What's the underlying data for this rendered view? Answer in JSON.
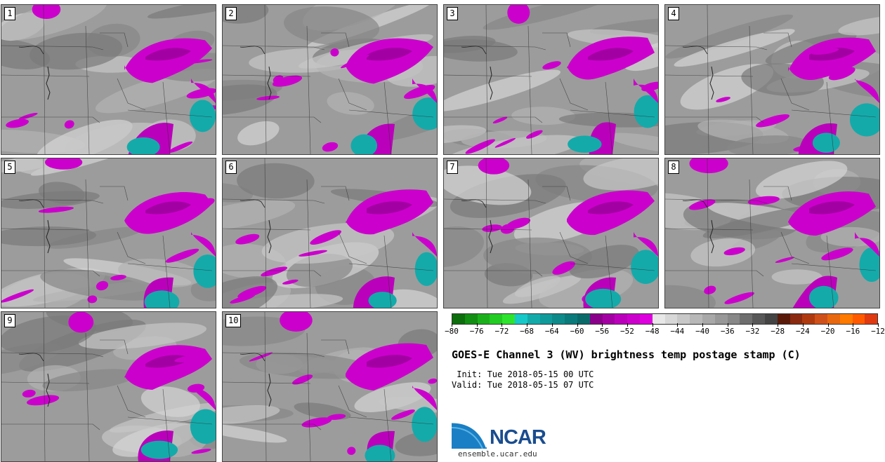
{
  "panels": [
    {
      "label": "1"
    },
    {
      "label": "2"
    },
    {
      "label": "3"
    },
    {
      "label": "4"
    },
    {
      "label": "5"
    },
    {
      "label": "6"
    },
    {
      "label": "7"
    },
    {
      "label": "8"
    },
    {
      "label": "9"
    },
    {
      "label": "10"
    }
  ],
  "colorbar": {
    "colors": [
      "#0d6e0d",
      "#138f13",
      "#1bb01b",
      "#22cc22",
      "#2ee32e",
      "#17c8c8",
      "#14aaaa",
      "#119a9a",
      "#0e8a8a",
      "#0b7a7a",
      "#0a6a6a",
      "#8a008a",
      "#a300a3",
      "#bb00bb",
      "#cc00cc",
      "#de00de",
      "#e8e8e8",
      "#d8d8d8",
      "#c8c8c8",
      "#b8b8b8",
      "#a8a8a8",
      "#989898",
      "#888888",
      "#6e6e6e",
      "#585858",
      "#444444",
      "#5a1a0a",
      "#8a2a10",
      "#b03a10",
      "#d0501a",
      "#e8680f",
      "#ff7a00",
      "#ff5a00",
      "#e03a10"
    ],
    "tick_labels": [
      "−80",
      "−76",
      "−72",
      "−68",
      "−64",
      "−60",
      "−56",
      "−52",
      "−48",
      "−44",
      "−40",
      "−36",
      "−32",
      "−28",
      "−24",
      "−20",
      "−16",
      "−12"
    ]
  },
  "title": "GOES-E Channel 3 (WV) brightness temp postage stamp (C)",
  "init_line": " Init: Tue 2018-05-15 00 UTC",
  "valid_line": "Valid: Tue 2018-05-15 07 UTC",
  "logo_text": "NCAR",
  "url": "ensemble.ucar.edu"
}
